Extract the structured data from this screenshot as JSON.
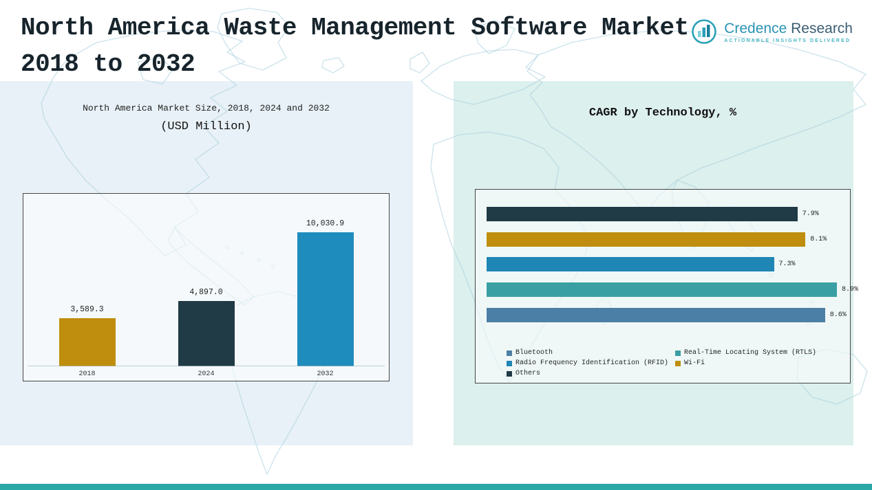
{
  "header": {
    "title_line1": "North America Waste Management Software Market",
    "title_line2": "2018 to 2032"
  },
  "logo": {
    "brand_first": "Credence",
    "brand_second": "Research",
    "tagline": "Actionable Insights Delivered"
  },
  "colors": {
    "gold": "#bf8e0e",
    "navy": "#203a46",
    "blue": "#1f8cbe",
    "teal": "#3a9fa2",
    "steel_blue": "#4c7fa5",
    "accent_strip": "#2aa7a7"
  },
  "chart_data": [
    {
      "type": "bar",
      "title": "North America Market Size, 2018, 2024 and 2032",
      "subtitle": "(USD Million)",
      "categories": [
        "2018",
        "2024",
        "2032"
      ],
      "values": [
        3589.3,
        4897.0,
        10030.9
      ],
      "value_labels": [
        "3,589.3",
        "4,897.0",
        "10,030.9"
      ],
      "bar_colors": [
        "#bf8e0e",
        "#203a46",
        "#1f8cbe"
      ],
      "xlabel": "",
      "ylabel": "",
      "ylim": [
        0,
        10500
      ],
      "grid": false
    },
    {
      "type": "bar",
      "orientation": "horizontal",
      "title": "CAGR by Technology, %",
      "categories": [
        "Others",
        "Wi-Fi",
        "Radio Frequency Identification (RFID)",
        "Real-Time Locating System (RTLS)",
        "Bluetooth"
      ],
      "values": [
        7.9,
        8.1,
        7.3,
        8.9,
        8.6
      ],
      "value_labels": [
        "7.9%",
        "8.1%",
        "7.3%",
        "8.9%",
        "8.6%"
      ],
      "bar_colors": [
        "#203a46",
        "#bf8e0e",
        "#1f86b5",
        "#3a9fa2",
        "#4c7fa5"
      ],
      "xlim": [
        0,
        9.3
      ],
      "grid": false,
      "legend_position": "lower center",
      "legend": [
        {
          "label": "Bluetooth",
          "color": "#4c7fa5"
        },
        {
          "label": "Real-Time Locating System (RTLS)",
          "color": "#3a9fa2"
        },
        {
          "label": "Radio Frequency Identification (RFID)",
          "color": "#1f86b5"
        },
        {
          "label": "Wi-Fi",
          "color": "#bf8e0e"
        },
        {
          "label": "Others",
          "color": "#203a46"
        }
      ]
    }
  ]
}
